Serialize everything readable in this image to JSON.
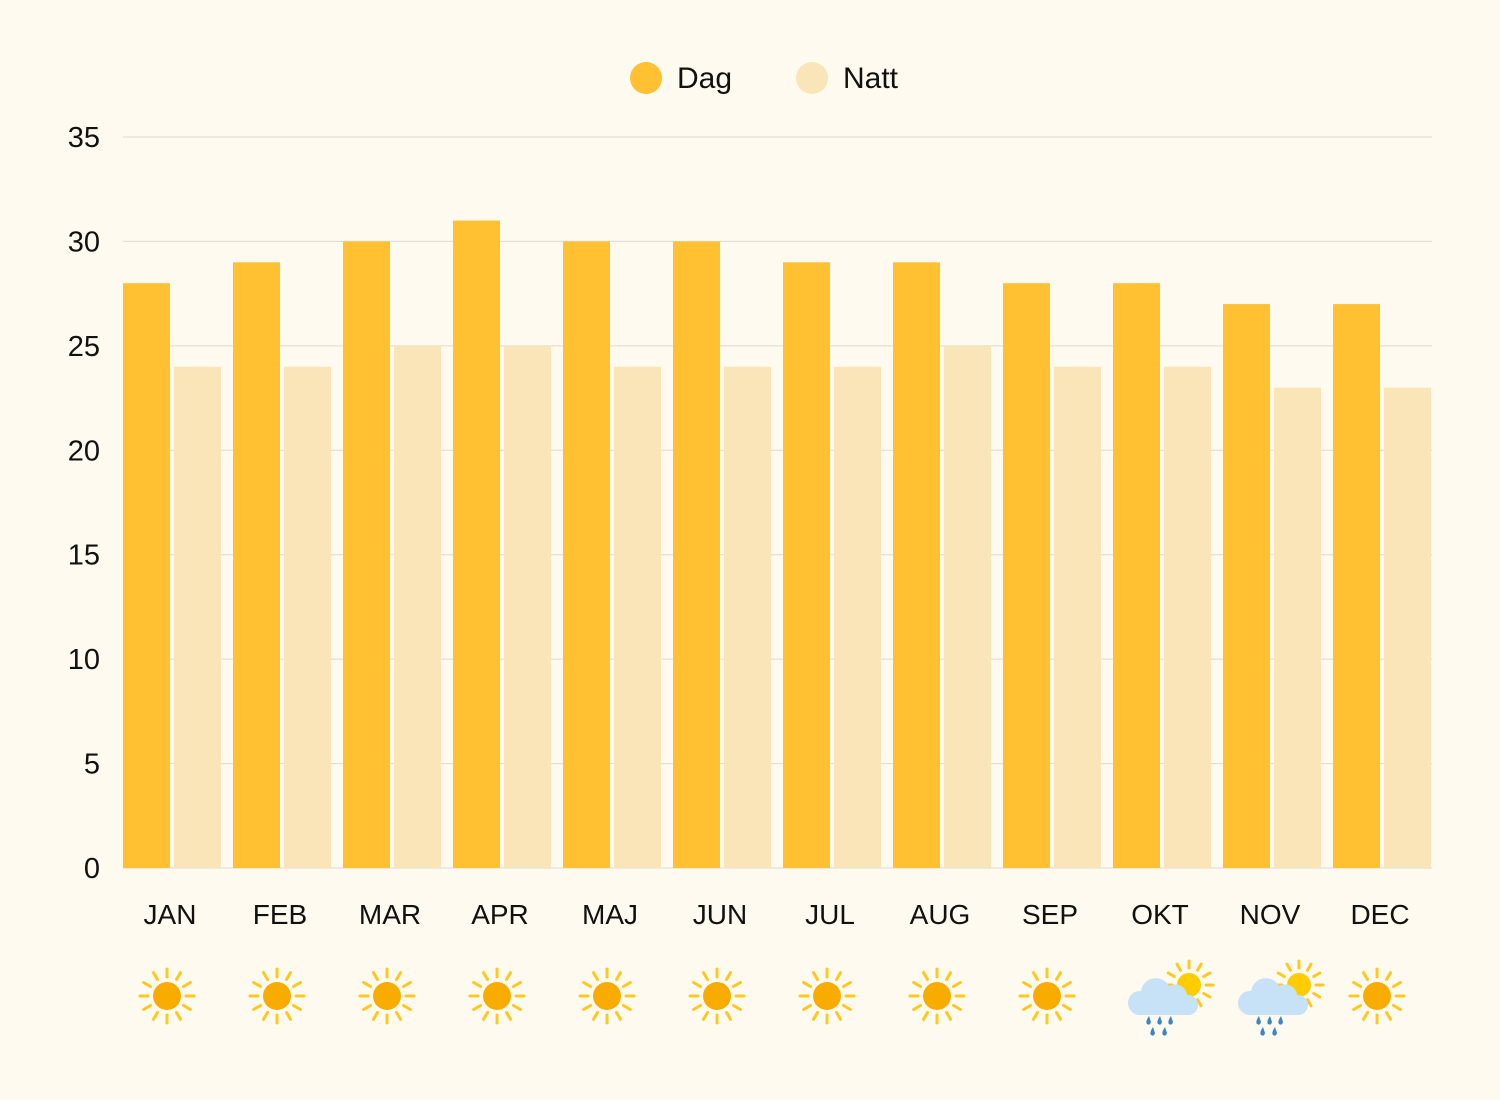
{
  "chart_data": {
    "type": "bar",
    "title": "",
    "xlabel": "",
    "ylabel": "",
    "ylim": [
      0,
      35
    ],
    "yticks": [
      0,
      5,
      10,
      15,
      20,
      25,
      30,
      35
    ],
    "grid": true,
    "legend_placement": "top-center",
    "categories": [
      "JAN",
      "FEB",
      "MAR",
      "APR",
      "MAJ",
      "JUN",
      "JUL",
      "AUG",
      "SEP",
      "OKT",
      "NOV",
      "DEC"
    ],
    "series": [
      {
        "name": "Dag",
        "color": "#FFC132",
        "values": [
          28,
          29,
          30,
          31,
          30,
          30,
          29,
          29,
          28,
          28,
          27,
          27
        ]
      },
      {
        "name": "Natt",
        "color": "#FAE5B8",
        "values": [
          24,
          24,
          25,
          25,
          24,
          24,
          24,
          25,
          24,
          24,
          23,
          23
        ]
      }
    ],
    "weather_icons": [
      "sun-icon",
      "sun-icon",
      "sun-icon",
      "sun-icon",
      "sun-icon",
      "sun-icon",
      "sun-icon",
      "sun-icon",
      "sun-icon",
      "rain-cloud-sun-icon",
      "rain-cloud-sun-icon",
      "sun-icon"
    ]
  },
  "colors": {
    "background": "#FFFAEF",
    "grid": "#DDDAD2",
    "sun_core": "#F9AC00",
    "sun_rays": "#FFC81E",
    "cloud": "#C7E1F7",
    "rain": "#3C86C6"
  }
}
